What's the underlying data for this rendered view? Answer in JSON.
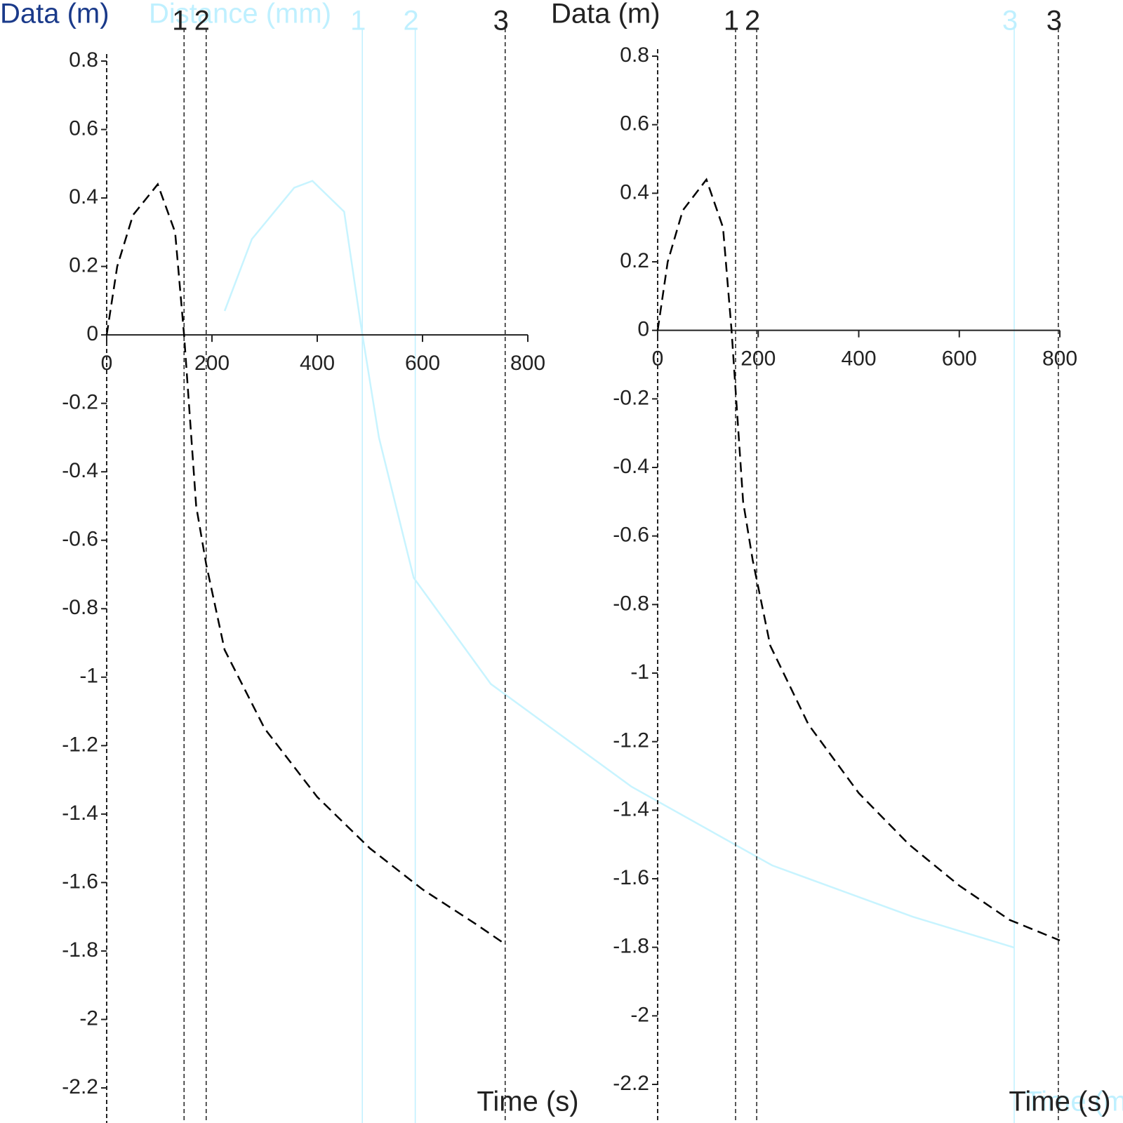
{
  "chart_data": [
    {
      "type": "line",
      "title": "Data (m)",
      "x_label": "Time (s)",
      "x": [
        0,
        20,
        50,
        97,
        130,
        147,
        170,
        189,
        224,
        300,
        400,
        500,
        600,
        700,
        757
      ],
      "series": [
        {
          "name": "Data",
          "color": "#000000",
          "values": [
            0,
            0.2,
            0.35,
            0.44,
            0.3,
            0,
            -0.5,
            -0.67,
            -0.92,
            -1.15,
            -1.35,
            -1.5,
            -1.62,
            -1.72,
            -1.78
          ]
        }
      ],
      "xlim": [
        0,
        800
      ],
      "xticks": [
        0,
        200,
        400,
        600,
        800
      ],
      "ylim": [
        -2.2,
        0.8
      ],
      "yticks": [
        0.8,
        0.6,
        0.4,
        0.2,
        0,
        -0.2,
        -0.4,
        -0.6,
        -0.8,
        -1,
        -1.2,
        -1.4,
        -1.6,
        -1.8,
        -2,
        -2.2
      ],
      "markers": [
        {
          "x": 147,
          "label": "1"
        },
        {
          "x": 189,
          "label": "2"
        },
        {
          "x": 757,
          "label": "3"
        }
      ]
    },
    {
      "type": "line",
      "title": "Data (m)",
      "x_label": "Time (s)",
      "x": [
        0,
        20,
        50,
        97,
        130,
        147,
        170,
        189,
        224,
        300,
        400,
        500,
        600,
        700,
        800
      ],
      "series": [
        {
          "name": "Data",
          "color": "#000000",
          "values": [
            0,
            0.2,
            0.35,
            0.44,
            0.3,
            0,
            -0.5,
            -0.67,
            -0.92,
            -1.15,
            -1.35,
            -1.5,
            -1.62,
            -1.72,
            -1.78
          ]
        }
      ],
      "xlim": [
        0,
        800
      ],
      "xticks": [
        0,
        200,
        400,
        600,
        800
      ],
      "ylim": [
        -2.2,
        0.8
      ],
      "yticks": [
        0.8,
        0.6,
        0.4,
        0.2,
        0,
        -0.2,
        -0.4,
        -0.6,
        -0.8,
        -1,
        -1.2,
        -1.4,
        -1.6,
        -1.8,
        -2,
        -2.2
      ],
      "markers": [
        {
          "x": 155,
          "label": "1"
        },
        {
          "x": 197,
          "label": "2"
        },
        {
          "x": 797,
          "label": "3"
        }
      ]
    },
    {
      "type": "line",
      "title": "Distance (mm)",
      "x_label": "Time (min)",
      "x": [
        7.8,
        9.6,
        12.4,
        13.6,
        15.7,
        16.8,
        18,
        20.3,
        25.4,
        34.7,
        44,
        53.3,
        60
      ],
      "series": [
        {
          "name": "Distance",
          "color": "#c8f4ff",
          "values": [
            0.07,
            0.28,
            0.43,
            0.45,
            0.36,
            0.03,
            -0.3,
            -0.71,
            -1.02,
            -1.32,
            -1.55,
            -1.7,
            -1.79
          ]
        }
      ],
      "xlim": [
        0,
        60
      ],
      "ylim": [
        -2.2,
        0.8
      ],
      "markers": [
        {
          "x": 16.9,
          "label": "1"
        },
        {
          "x": 20.4,
          "label": "2"
        },
        {
          "x": 60,
          "label": "3"
        }
      ]
    }
  ]
}
